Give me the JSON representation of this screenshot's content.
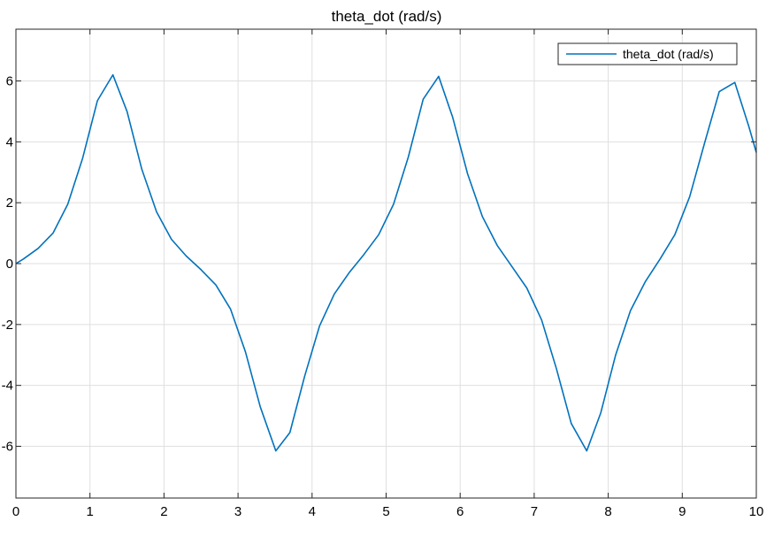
{
  "chart_data": {
    "type": "line",
    "title": "theta_dot (rad/s)",
    "xlabel": "",
    "ylabel": "",
    "xlim": [
      0,
      10
    ],
    "ylim": [
      -7.7,
      7.7
    ],
    "xticks": [
      0,
      1,
      2,
      3,
      4,
      5,
      6,
      7,
      8,
      9,
      10
    ],
    "xtick_labels": [
      "0",
      "1",
      "2",
      "3",
      "4",
      "5",
      "6",
      "7",
      "8",
      "9",
      "10"
    ],
    "yticks": [
      -6,
      -4,
      -2,
      0,
      2,
      4,
      6
    ],
    "ytick_labels": [
      "-6",
      "-4",
      "-2",
      "0",
      "2",
      "4",
      "6"
    ],
    "grid": true,
    "legend_position": "top-right",
    "series": [
      {
        "name": "theta_dot (rad/s)",
        "color": "#0072BD",
        "x": [
          0,
          0.1,
          0.3,
          0.5,
          0.7,
          0.9,
          1.1,
          1.31,
          1.5,
          1.7,
          1.9,
          2.1,
          2.3,
          2.5,
          2.7,
          2.9,
          3.1,
          3.3,
          3.51,
          3.7,
          3.9,
          4.1,
          4.3,
          4.5,
          4.7,
          4.9,
          5.1,
          5.3,
          5.5,
          5.71,
          5.9,
          6.1,
          6.3,
          6.5,
          6.7,
          6.9,
          7.1,
          7.3,
          7.5,
          7.71,
          7.9,
          8.1,
          8.3,
          8.5,
          8.7,
          8.9,
          9.1,
          9.3,
          9.5,
          9.71,
          9.9,
          10.0
        ],
        "y": [
          0,
          0.15,
          0.5,
          1.0,
          1.95,
          3.45,
          5.35,
          6.2,
          5.0,
          3.1,
          1.7,
          0.8,
          0.25,
          -0.2,
          -0.7,
          -1.5,
          -2.9,
          -4.7,
          -6.15,
          -5.55,
          -3.7,
          -2.05,
          -1.0,
          -0.3,
          0.3,
          0.95,
          1.95,
          3.5,
          5.4,
          6.15,
          4.8,
          2.95,
          1.55,
          0.6,
          -0.1,
          -0.8,
          -1.85,
          -3.45,
          -5.25,
          -6.15,
          -4.9,
          -3.0,
          -1.55,
          -0.6,
          0.15,
          0.95,
          2.2,
          3.95,
          5.65,
          5.95,
          4.5,
          3.65
        ]
      }
    ]
  }
}
